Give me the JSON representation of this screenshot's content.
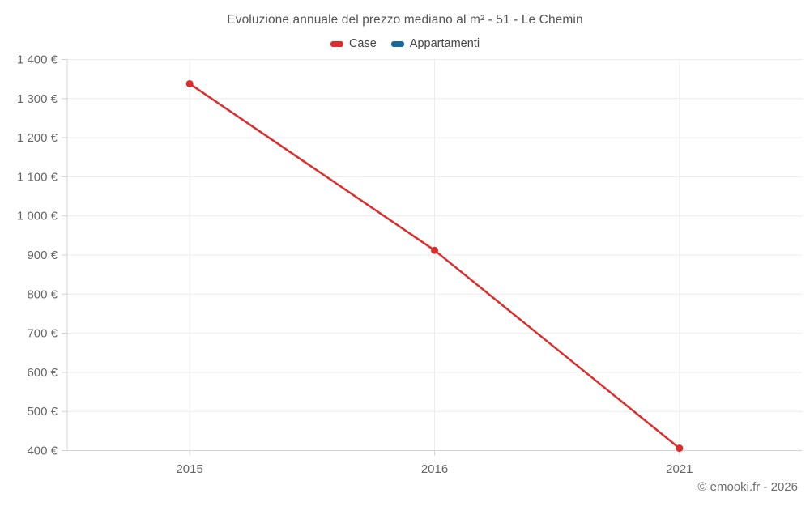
{
  "title": "Evoluzione annuale del prezzo mediano al m² - 51 - Le Chemin",
  "footer_credit": "© emooki.fr - 2026",
  "legend": {
    "items": [
      {
        "label": "Case",
        "color": "#dd2c2c"
      },
      {
        "label": "Appartamenti",
        "color": "#17699e"
      }
    ]
  },
  "chart_data": {
    "type": "line",
    "title": "Evoluzione annuale del prezzo mediano al m² - 51 - Le Chemin",
    "categories": [
      "2015",
      "2016",
      "2021"
    ],
    "series": [
      {
        "name": "Case",
        "color": "#dd2c2c",
        "values": [
          1338,
          912,
          406
        ]
      },
      {
        "name": "Appartamenti",
        "color": "#17699e",
        "values": []
      }
    ],
    "xlabel": "",
    "ylabel": "",
    "ylim": [
      400,
      1400
    ],
    "ytick_step": 100,
    "ytick_labels": [
      "400 €",
      "500 €",
      "600 €",
      "700 €",
      "800 €",
      "900 €",
      "1 000 €",
      "1 100 €",
      "1 200 €",
      "1 300 €",
      "1 400 €"
    ],
    "grid": true,
    "legend_position": "top",
    "currency": "€"
  },
  "colors": {
    "grid": "#ececec",
    "axis": "#d4d4d4",
    "tick_text": "#666666",
    "title_text": "#545454",
    "background": "#ffffff"
  }
}
